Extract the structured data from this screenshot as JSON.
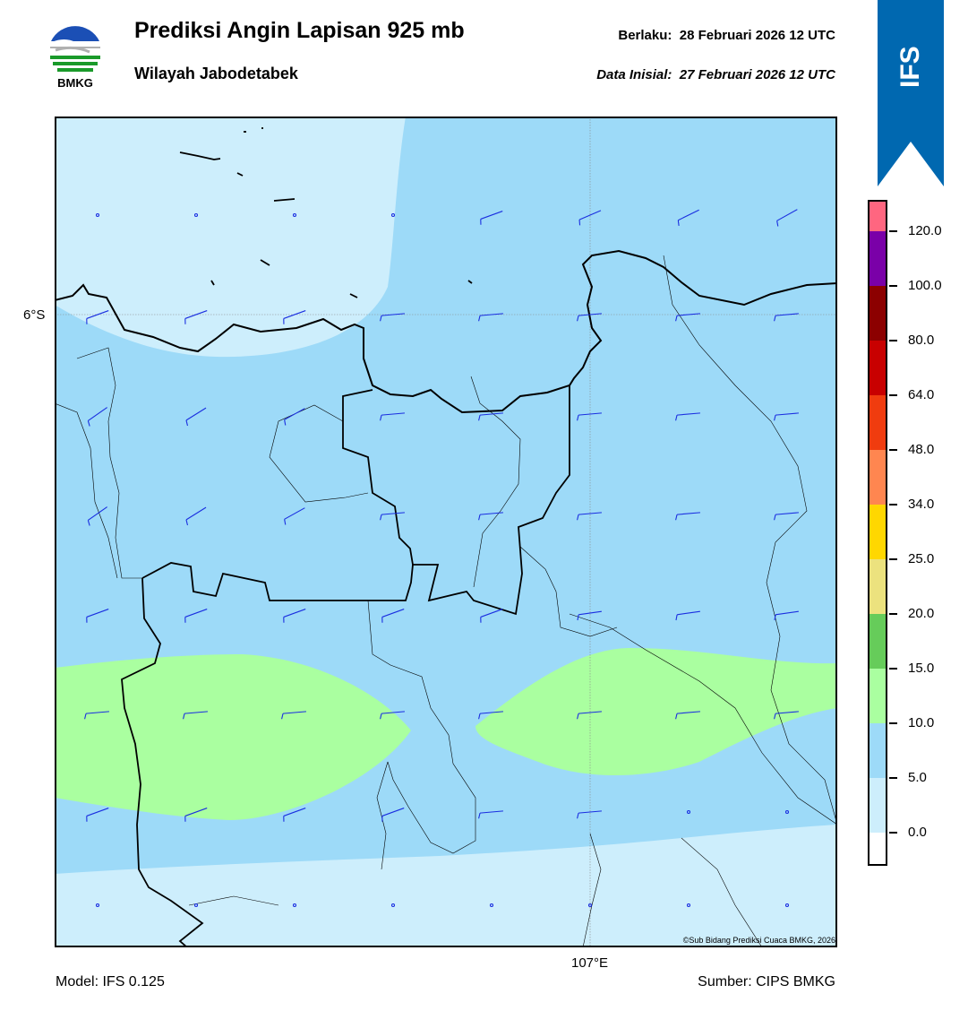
{
  "header": {
    "title": "Prediksi Angin Lapisan 925 mb",
    "subtitle": "Wilayah Jabodetabek",
    "valid_label": "Berlaku:",
    "valid_value": "28 Februari 2026 12 UTC",
    "init_label": "Data Inisial:",
    "init_value": "27 Februari 2026 12 UTC"
  },
  "logo": {
    "text": "BMKG"
  },
  "ribbon": {
    "label": "IFS",
    "color": "#0068b0"
  },
  "map": {
    "lat_label": "6°S",
    "lon_label": "107°E",
    "copyright": "©Sub Bidang Prediksi Cuaca BMKG, 2026",
    "barb_color": "#1a2ee0"
  },
  "colorbar": {
    "ticks": [
      "0.0",
      "5.0",
      "10.0",
      "15.0",
      "20.0",
      "25.0",
      "34.0",
      "48.0",
      "64.0",
      "80.0",
      "100.0",
      "120.0"
    ],
    "colors": [
      "#ffffff",
      "#cdeefc",
      "#9ddaf8",
      "#aaffa0",
      "#66cc5a",
      "#ece27e",
      "#ffd700",
      "#ff8650",
      "#f03c0f",
      "#c80000",
      "#8c0000",
      "#7a00a8",
      "#ff6680"
    ]
  },
  "footer": {
    "model": "Model: IFS 0.125",
    "source": "Sumber: CIPS BMKG"
  }
}
